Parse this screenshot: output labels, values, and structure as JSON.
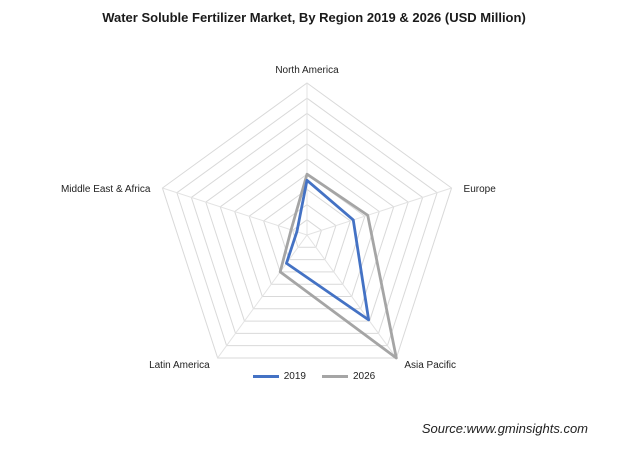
{
  "chart_data": {
    "type": "radar",
    "title": "Water Soluble Fertilizer Market, By Region 2019 & 2026 (USD Million)",
    "categories": [
      "North America",
      "Europe",
      "Asia Pacific",
      "Latin America",
      "Middle East & Africa"
    ],
    "rmax": 10,
    "rings": 10,
    "grid": true,
    "legend_position": "bottom",
    "series": [
      {
        "name": "2019",
        "color": "#4472c4",
        "values": [
          3.6,
          3.2,
          6.9,
          2.3,
          0.7
        ]
      },
      {
        "name": "2026",
        "color": "#a5a5a5",
        "values": [
          4.0,
          4.2,
          10.0,
          3.0,
          1.1
        ]
      }
    ]
  },
  "source": "Source:www.gminsights.com"
}
